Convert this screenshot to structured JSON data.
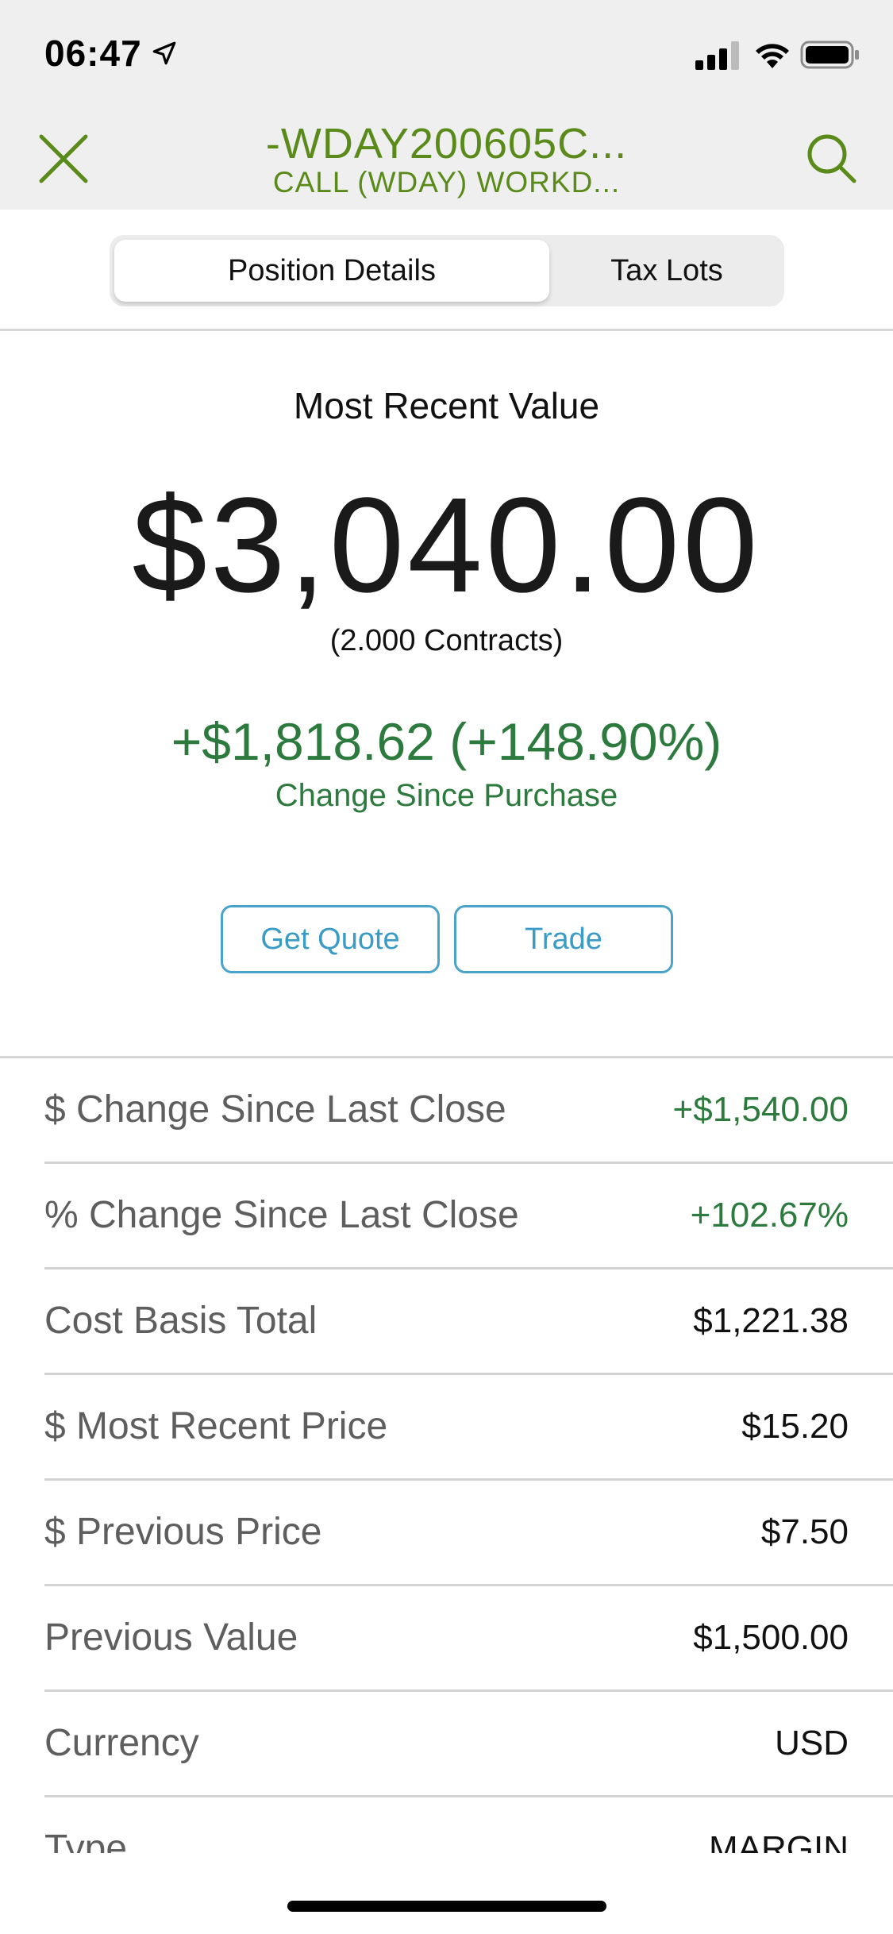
{
  "status_bar": {
    "time": "06:47",
    "location_icon": "location-arrow-icon",
    "signal_icon": "cellular-signal-icon",
    "wifi_icon": "wifi-icon",
    "battery_icon": "battery-icon"
  },
  "nav": {
    "title": "-WDAY200605C...",
    "subtitle": "CALL (WDAY) WORKD...",
    "close_icon": "close-icon",
    "search_icon": "search-icon"
  },
  "tabs": [
    {
      "label": "Position Details",
      "selected": true
    },
    {
      "label": "Tax Lots",
      "selected": false
    }
  ],
  "hero": {
    "label": "Most Recent Value",
    "value": "$3,040.00",
    "contracts": "(2.000 Contracts)",
    "change": "+$1,818.62 (+148.90%)",
    "change_label": "Change Since Purchase"
  },
  "actions": {
    "get_quote": "Get Quote",
    "trade": "Trade"
  },
  "details": [
    {
      "label": "$ Change Since Last Close",
      "value": "+$1,540.00",
      "positive": true
    },
    {
      "label": "% Change Since Last Close",
      "value": "+102.67%",
      "positive": true
    },
    {
      "label": "Cost Basis Total",
      "value": "$1,221.38",
      "positive": false
    },
    {
      "label": "$ Most Recent Price",
      "value": "$15.20",
      "positive": false
    },
    {
      "label": "$ Previous Price",
      "value": "$7.50",
      "positive": false
    },
    {
      "label": "Previous Value",
      "value": "$1,500.00",
      "positive": false
    },
    {
      "label": "Currency",
      "value": "USD",
      "positive": false
    },
    {
      "label": "Type",
      "value": "MARGIN",
      "positive": false
    }
  ],
  "colors": {
    "accent_green": "#5a8a1a",
    "positive_green": "#2d7a3e",
    "button_blue": "#4aa3c8"
  }
}
